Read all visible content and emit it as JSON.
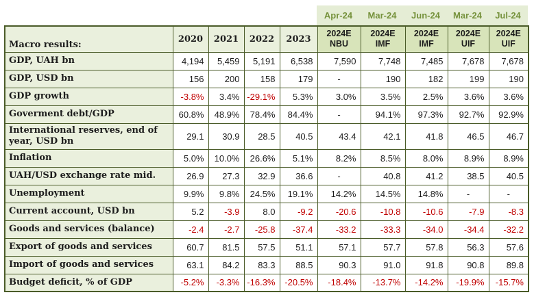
{
  "table": {
    "title_cell": "Macro results:",
    "date_strip": [
      "Apr-24",
      "Mar-24",
      "Jun-24",
      "Mar-24",
      "Jul-24"
    ],
    "year_headers": [
      "2020",
      "2021",
      "2022",
      "2023"
    ],
    "forecast_headers": [
      {
        "year": "2024E",
        "source": "NBU"
      },
      {
        "year": "2024E",
        "source": "IMF"
      },
      {
        "year": "2024E",
        "source": "IMF"
      },
      {
        "year": "2024E",
        "source": "UIF"
      },
      {
        "year": "2024E",
        "source": "UIF"
      }
    ],
    "rows": [
      {
        "label": "GDP, UAH bn",
        "values": [
          "4,194",
          "5,459",
          "5,191",
          "6,538",
          "7,590",
          "7,748",
          "7,485",
          "7,678",
          "7,678"
        ]
      },
      {
        "label": "GDP, USD bn",
        "values": [
          "156",
          "200",
          "158",
          "179",
          "-",
          "190",
          "182",
          "199",
          "190"
        ]
      },
      {
        "label": "GDP growth",
        "values": [
          "-3.8%",
          "3.4%",
          "-29.1%",
          "5.3%",
          "3.0%",
          "3.5%",
          "2.5%",
          "3.6%",
          "3.6%"
        ]
      },
      {
        "label": "Goverment debt/GDP",
        "values": [
          "60.8%",
          "48.9%",
          "78.4%",
          "84.4%",
          "-",
          "94.1%",
          "97.3%",
          "92.7%",
          "92.9%"
        ]
      },
      {
        "label": "International reserves, end of year, USD bn",
        "tall": true,
        "values": [
          "29.1",
          "30.9",
          "28.5",
          "40.5",
          "43.4",
          "42.1",
          "41.8",
          "46.5",
          "46.7"
        ]
      },
      {
        "label": "Inflation",
        "values": [
          "5.0%",
          "10.0%",
          "26.6%",
          "5.1%",
          "8.2%",
          "8.5%",
          "8.0%",
          "8.9%",
          "8.9%"
        ]
      },
      {
        "label": "UAH/USD exchange rate mid.",
        "values": [
          "26.9",
          "27.3",
          "32.9",
          "36.6",
          "-",
          "40.8",
          "41.2",
          "38.5",
          "40.5"
        ]
      },
      {
        "label": "Unemployment",
        "values": [
          "9.9%",
          "9.8%",
          "24.5%",
          "19.1%",
          "14.2%",
          "14.5%",
          "14.8%",
          "-",
          "-"
        ]
      },
      {
        "label": "Current account, USD bn",
        "values": [
          "5.2",
          "-3.9",
          "8.0",
          "-9.2",
          "-20.6",
          "-10.8",
          "-10.6",
          "-7.9",
          "-8.3"
        ]
      },
      {
        "label": "Goods and services (balance)",
        "values": [
          "-2.4",
          "-2.7",
          "-25.8",
          "-37.4",
          "-33.2",
          "-33.3",
          "-34.0",
          "-34.4",
          "-32.2"
        ]
      },
      {
        "label": "Export of goods and services",
        "values": [
          "60.7",
          "81.5",
          "57.5",
          "51.1",
          "57.1",
          "57.7",
          "57.8",
          "56.3",
          "57.6"
        ]
      },
      {
        "label": "Import of goods and services",
        "values": [
          "63.1",
          "84.2",
          "83.3",
          "88.5",
          "90.3",
          "91.0",
          "91.8",
          "90.8",
          "89.8"
        ]
      },
      {
        "label": "Budget deficit, % of GDP",
        "values": [
          "-5.2%",
          "-3.3%",
          "-16.3%",
          "-20.5%",
          "-18.4%",
          "-13.7%",
          "-14.2%",
          "-19.9%",
          "-15.7%"
        ]
      }
    ]
  },
  "colors": {
    "border": "#4a5b28",
    "label_background": "#eaf0dd",
    "forecast_header_background": "#d8e4ba",
    "strip_background": "#e5edd5",
    "strip_text": "#76923c",
    "negative_value": "#c00000",
    "text": "#1d1d1d"
  }
}
